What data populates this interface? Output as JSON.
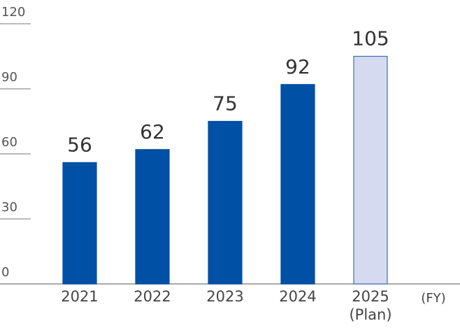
{
  "chart_data": {
    "type": "bar",
    "categories": [
      "2021",
      "2022",
      "2023",
      "2024",
      "2025\n(Plan)"
    ],
    "values": [
      56,
      62,
      75,
      92,
      105
    ],
    "colors": [
      "#0050a5",
      "#0050a5",
      "#0050a5",
      "#0050a5",
      "#d5daf0"
    ],
    "edgecolors": [
      "#0050a5",
      "#0050a5",
      "#0050a5",
      "#0050a5",
      "#3d6fb8"
    ],
    "x_unit": "(FY)",
    "ylim": [
      0,
      120
    ],
    "yticks": [
      0,
      30,
      60,
      90,
      120
    ]
  }
}
